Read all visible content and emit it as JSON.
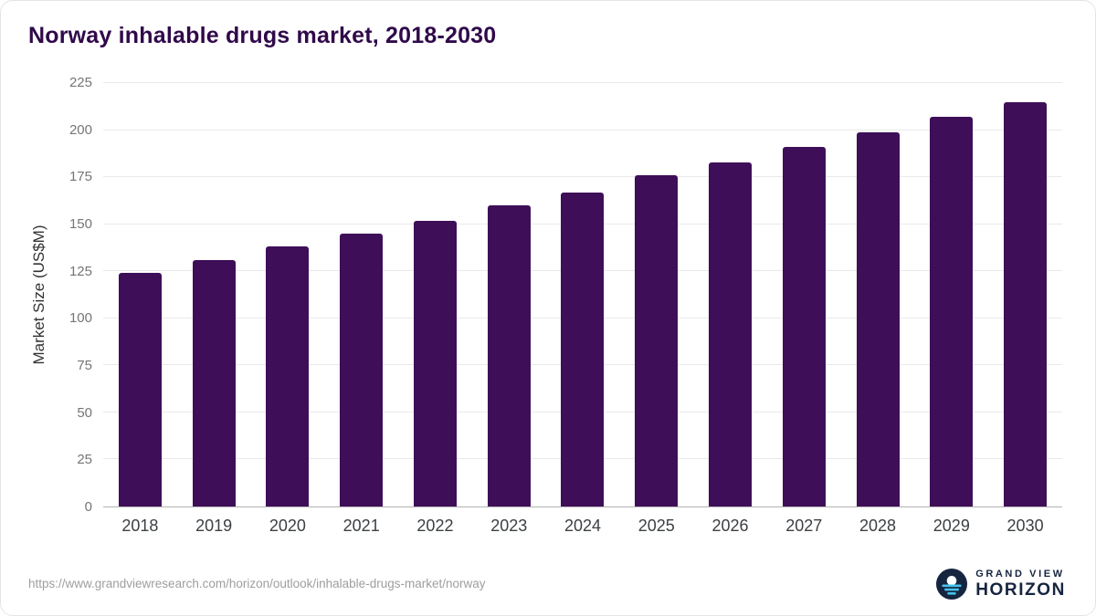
{
  "title": "Norway inhalable drugs market, 2018-2030",
  "chart_data": {
    "type": "bar",
    "title": "Norway inhalable drugs market, 2018-2030",
    "categories": [
      "2018",
      "2019",
      "2020",
      "2021",
      "2022",
      "2023",
      "2024",
      "2025",
      "2026",
      "2027",
      "2028",
      "2029",
      "2030"
    ],
    "values": [
      124,
      131,
      138,
      145,
      152,
      160,
      167,
      176,
      183,
      191,
      199,
      207,
      215
    ],
    "xlabel": "",
    "ylabel": "Market Size (US$M)",
    "ylim": [
      0,
      225
    ],
    "yticks": [
      0,
      25,
      50,
      75,
      100,
      125,
      150,
      175,
      200,
      225
    ],
    "grid": true,
    "legend": "none",
    "bar_color": "#3e0e58"
  },
  "footer": {
    "source_url": "https://www.grandviewresearch.com/horizon/outlook/inhalable-drugs-market/norway",
    "logo": {
      "top": "GRAND VIEW",
      "bottom": "HORIZON"
    }
  },
  "colors": {
    "title": "#30094a",
    "bar": "#3e0e58",
    "gridline": "#e9e9e9",
    "axis_line": "#b3b3b3",
    "tick_label": "#757575",
    "x_label": "#3c4043",
    "source_text": "#9e9e9e",
    "logo_navy": "#16253f",
    "logo_cyan": "#45c2ea"
  }
}
